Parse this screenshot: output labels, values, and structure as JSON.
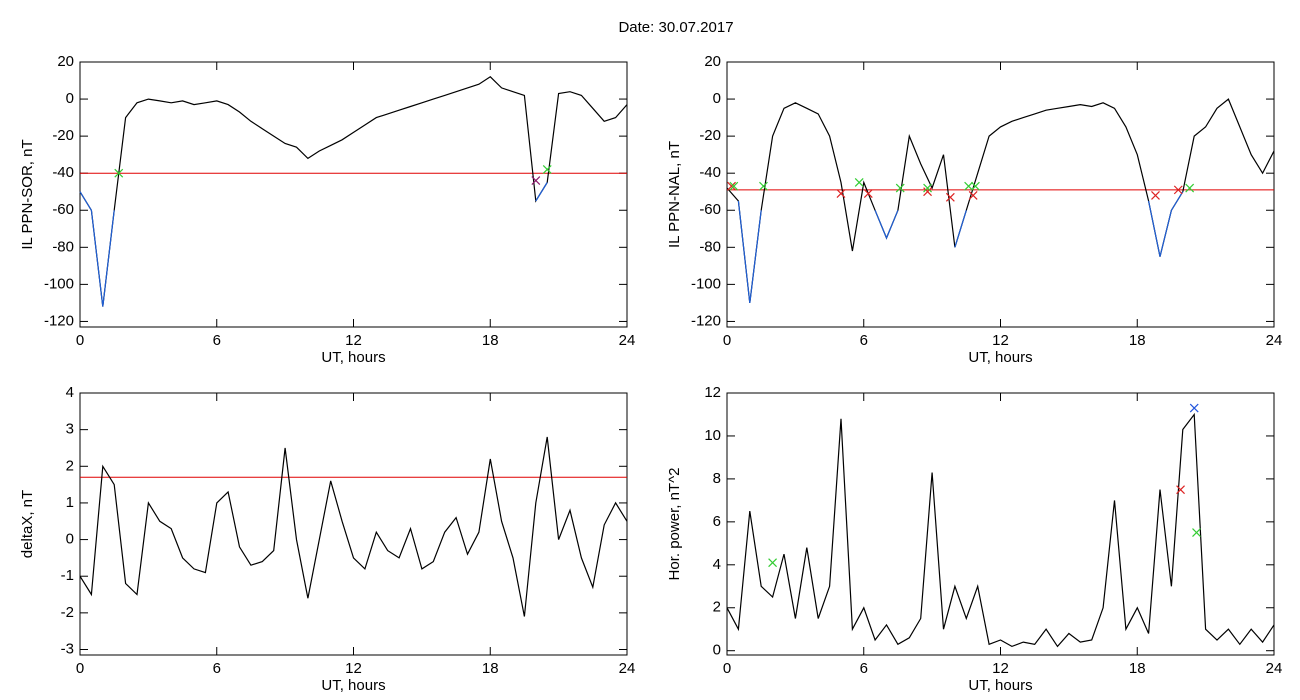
{
  "title": "Date:  30.07.2017",
  "chart_data": [
    {
      "type": "line",
      "ylabel": "IL PPN-SOR, nT",
      "xlabel": "UT, hours",
      "xlim": [
        0,
        24
      ],
      "xticks": [
        0,
        6,
        12,
        18,
        24
      ],
      "ylim": [
        -123,
        20
      ],
      "yticks": [
        -120,
        -100,
        -80,
        -60,
        -40,
        -20,
        0,
        20
      ],
      "grid": false,
      "x": [
        0,
        0.5,
        1,
        1.5,
        2,
        2.5,
        3,
        3.5,
        4,
        4.5,
        5,
        5.5,
        6,
        6.5,
        7,
        7.5,
        8,
        8.5,
        9,
        9.5,
        10,
        10.5,
        11,
        11.5,
        12,
        12.5,
        13,
        13.5,
        14,
        14.5,
        15,
        15.5,
        16,
        16.5,
        17,
        17.5,
        18,
        18.5,
        19,
        19.5,
        20,
        20.5,
        21,
        21.5,
        22,
        22.5,
        23,
        23.5,
        24
      ],
      "hline": {
        "value": -40,
        "color": "#e00000"
      },
      "series": [
        {
          "color": "#000000",
          "values": [
            -50,
            -60,
            -112,
            -60,
            -10,
            -2,
            0,
            -1,
            -2,
            -1,
            -3,
            -2,
            -1,
            -3,
            -7,
            -12,
            -16,
            -20,
            -24,
            -26,
            -32,
            -28,
            -25,
            -22,
            -18,
            -14,
            -10,
            -8,
            -6,
            -4,
            -2,
            0,
            2,
            4,
            6,
            8,
            12,
            6,
            4,
            2,
            -55,
            -45,
            3,
            4,
            2,
            -5,
            -12,
            -10,
            -3
          ]
        },
        {
          "color": "#1f5fd6",
          "values": [
            -50,
            -60,
            -112,
            -60,
            null,
            null,
            null,
            null,
            null,
            null,
            null,
            null,
            null,
            null,
            null,
            null,
            null,
            null,
            null,
            null,
            null,
            null,
            null,
            null,
            null,
            null,
            null,
            null,
            null,
            null,
            null,
            null,
            null,
            null,
            null,
            null,
            null,
            null,
            null,
            null,
            -55,
            -45,
            null,
            null,
            null,
            null,
            null,
            null,
            null
          ]
        },
        {
          "marker": "x",
          "color": "#8b1a6b",
          "x": [
            20
          ],
          "values": [
            -44
          ]
        },
        {
          "marker": "x",
          "color": "#33cc33",
          "x": [
            1.7,
            20.5
          ],
          "values": [
            -40,
            -38
          ]
        }
      ]
    },
    {
      "type": "line",
      "ylabel": "IL PPN-NAL, nT",
      "xlabel": "UT, hours",
      "xlim": [
        0,
        24
      ],
      "xticks": [
        0,
        6,
        12,
        18,
        24
      ],
      "ylim": [
        -123,
        20
      ],
      "yticks": [
        -120,
        -100,
        -80,
        -60,
        -40,
        -20,
        0,
        20
      ],
      "grid": false,
      "x": [
        0,
        0.5,
        1,
        1.5,
        2,
        2.5,
        3,
        3.5,
        4,
        4.5,
        5,
        5.5,
        6,
        6.5,
        7,
        7.5,
        8,
        8.5,
        9,
        9.5,
        10,
        10.5,
        11,
        11.5,
        12,
        12.5,
        13,
        13.5,
        14,
        14.5,
        15,
        15.5,
        16,
        16.5,
        17,
        17.5,
        18,
        18.5,
        19,
        19.5,
        20,
        20.5,
        21,
        21.5,
        22,
        22.5,
        23,
        23.5,
        24
      ],
      "hline": {
        "value": -49,
        "color": "#e00000"
      },
      "series": [
        {
          "color": "#000000",
          "values": [
            -48,
            -55,
            -110,
            -60,
            -20,
            -5,
            -2,
            -5,
            -8,
            -20,
            -45,
            -82,
            -45,
            -60,
            -75,
            -60,
            -20,
            -35,
            -48,
            -30,
            -80,
            -60,
            -40,
            -20,
            -15,
            -12,
            -10,
            -8,
            -6,
            -5,
            -4,
            -3,
            -4,
            -2,
            -5,
            -15,
            -30,
            -55,
            -85,
            -60,
            -50,
            -20,
            -15,
            -5,
            0,
            -15,
            -30,
            -40,
            -28
          ]
        },
        {
          "color": "#1f5fd6",
          "values": [
            null,
            -55,
            -110,
            -60,
            null,
            null,
            null,
            null,
            null,
            null,
            null,
            -82,
            null,
            -60,
            -75,
            -60,
            null,
            null,
            null,
            null,
            -80,
            -60,
            null,
            null,
            null,
            null,
            null,
            null,
            null,
            null,
            null,
            null,
            null,
            null,
            null,
            null,
            null,
            -55,
            -85,
            -60,
            -50,
            null,
            null,
            null,
            null,
            null,
            null,
            null,
            null
          ]
        },
        {
          "marker": "x",
          "color": "#dd2222",
          "x": [
            0.2,
            5,
            6.2,
            8.8,
            9.8,
            10.8,
            18.8,
            19.8
          ],
          "values": [
            -47,
            -51,
            -51,
            -50,
            -53,
            -52,
            -52,
            -49
          ]
        },
        {
          "marker": "x",
          "color": "#33cc33",
          "x": [
            0.3,
            1.6,
            5.8,
            7.6,
            8.8,
            10.6,
            10.9,
            20.3
          ],
          "values": [
            -47,
            -47,
            -45,
            -48,
            -48,
            -47,
            -47,
            -48
          ]
        }
      ]
    },
    {
      "type": "line",
      "ylabel": "deltaX, nT",
      "xlabel": "UT, hours",
      "xlim": [
        0,
        24
      ],
      "xticks": [
        0,
        6,
        12,
        18,
        24
      ],
      "ylim": [
        -3.15,
        4
      ],
      "yticks": [
        -3,
        -2,
        -1,
        0,
        1,
        2,
        3,
        4
      ],
      "grid": false,
      "x": [
        0,
        0.5,
        1,
        1.5,
        2,
        2.5,
        3,
        3.5,
        4,
        4.5,
        5,
        5.5,
        6,
        6.5,
        7,
        7.5,
        8,
        8.5,
        9,
        9.5,
        10,
        10.5,
        11,
        11.5,
        12,
        12.5,
        13,
        13.5,
        14,
        14.5,
        15,
        15.5,
        16,
        16.5,
        17,
        17.5,
        18,
        18.5,
        19,
        19.5,
        20,
        20.5,
        21,
        21.5,
        22,
        22.5,
        23,
        23.5,
        24
      ],
      "hline": {
        "value": 1.7,
        "color": "#e00000"
      },
      "series": [
        {
          "color": "#000000",
          "values": [
            -1,
            -1.5,
            2,
            1.5,
            -1.2,
            -1.5,
            1,
            0.5,
            0.3,
            -0.5,
            -0.8,
            -0.9,
            1,
            1.3,
            -0.2,
            -0.7,
            -0.6,
            -0.3,
            2.5,
            0,
            -1.6,
            0,
            1.6,
            0.5,
            -0.5,
            -0.8,
            0.2,
            -0.3,
            -0.5,
            0.3,
            -0.8,
            -0.6,
            0.2,
            0.6,
            -0.4,
            0.2,
            2.2,
            0.5,
            -0.5,
            -2.1,
            1,
            2.8,
            0,
            0.8,
            -0.5,
            -1.3,
            0.4,
            1,
            0.5
          ]
        }
      ]
    },
    {
      "type": "line",
      "ylabel": "Hor. power, nT^2",
      "xlabel": "UT, hours",
      "xlim": [
        0,
        24
      ],
      "xticks": [
        0,
        6,
        12,
        18,
        24
      ],
      "ylim": [
        -0.2,
        12
      ],
      "yticks": [
        0,
        2,
        4,
        6,
        8,
        10,
        12
      ],
      "grid": false,
      "x": [
        0,
        0.5,
        1,
        1.5,
        2,
        2.5,
        3,
        3.5,
        4,
        4.5,
        5,
        5.5,
        6,
        6.5,
        7,
        7.5,
        8,
        8.5,
        9,
        9.5,
        10,
        10.5,
        11,
        11.5,
        12,
        12.5,
        13,
        13.5,
        14,
        14.5,
        15,
        15.5,
        16,
        16.5,
        17,
        17.5,
        18,
        18.5,
        19,
        19.5,
        20,
        20.5,
        21,
        21.5,
        22,
        22.5,
        23,
        23.5,
        24
      ],
      "series": [
        {
          "color": "#000000",
          "values": [
            2,
            1,
            6.5,
            3,
            2.5,
            4.5,
            1.5,
            4.8,
            1.5,
            3,
            10.8,
            1,
            2,
            0.5,
            1.2,
            0.3,
            0.6,
            1.5,
            8.3,
            1,
            3,
            1.5,
            3,
            0.3,
            0.5,
            0.2,
            0.4,
            0.3,
            1,
            0.2,
            0.8,
            0.4,
            0.5,
            2,
            7,
            1,
            2,
            0.8,
            7.5,
            3,
            10.3,
            11,
            1,
            0.5,
            1,
            0.3,
            1,
            0.4,
            1.2
          ]
        },
        {
          "marker": "x",
          "color": "#dd2222",
          "x": [
            19.9
          ],
          "values": [
            7.5
          ]
        },
        {
          "marker": "x",
          "color": "#33cc33",
          "x": [
            2,
            20.6
          ],
          "values": [
            4.1,
            5.5
          ]
        },
        {
          "marker": "x",
          "color": "#2255dd",
          "x": [
            20.5
          ],
          "values": [
            11.3
          ]
        }
      ]
    }
  ]
}
